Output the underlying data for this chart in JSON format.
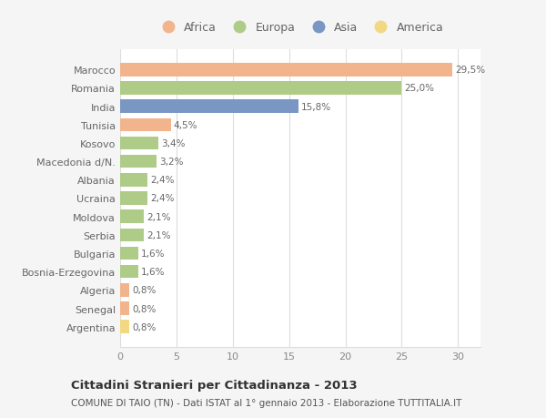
{
  "countries": [
    "Marocco",
    "Romania",
    "India",
    "Tunisia",
    "Kosovo",
    "Macedonia d/N.",
    "Albania",
    "Ucraina",
    "Moldova",
    "Serbia",
    "Bulgaria",
    "Bosnia-Erzegovina",
    "Algeria",
    "Senegal",
    "Argentina"
  ],
  "values": [
    29.5,
    25.0,
    15.8,
    4.5,
    3.4,
    3.2,
    2.4,
    2.4,
    2.1,
    2.1,
    1.6,
    1.6,
    0.8,
    0.8,
    0.8
  ],
  "labels": [
    "29,5%",
    "25,0%",
    "15,8%",
    "4,5%",
    "3,4%",
    "3,2%",
    "2,4%",
    "2,4%",
    "2,1%",
    "2,1%",
    "1,6%",
    "1,6%",
    "0,8%",
    "0,8%",
    "0,8%"
  ],
  "continents": [
    "Africa",
    "Europa",
    "Asia",
    "Africa",
    "Europa",
    "Europa",
    "Europa",
    "Europa",
    "Europa",
    "Europa",
    "Europa",
    "Europa",
    "Africa",
    "Africa",
    "America"
  ],
  "colors": {
    "Africa": "#F2B48C",
    "Europa": "#AECB87",
    "Asia": "#7A96C2",
    "America": "#F2D882"
  },
  "legend_order": [
    "Africa",
    "Europa",
    "Asia",
    "America"
  ],
  "xlim": [
    0,
    32
  ],
  "xticks": [
    0,
    5,
    10,
    15,
    20,
    25,
    30
  ],
  "title": "Cittadini Stranieri per Cittadinanza - 2013",
  "subtitle": "COMUNE DI TAIO (TN) - Dati ISTAT al 1° gennaio 2013 - Elaborazione TUTTITALIA.IT",
  "bg_color": "#f5f5f5",
  "plot_bg_color": "#ffffff",
  "grid_color": "#dddddd",
  "bar_height": 0.72
}
